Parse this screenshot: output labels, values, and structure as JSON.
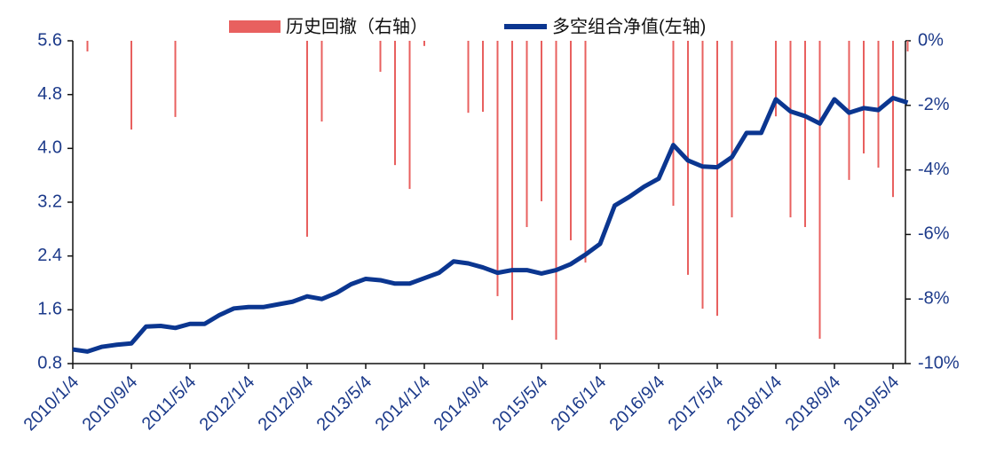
{
  "chart_data": {
    "type": "bar-line",
    "categories": [
      "2010/1/4",
      null,
      null,
      null,
      "2010/9/4",
      null,
      null,
      null,
      "2011/5/4",
      null,
      null,
      null,
      "2012/1/4",
      null,
      null,
      null,
      "2012/9/4",
      null,
      null,
      null,
      "2013/5/4",
      null,
      null,
      null,
      "2014/1/4",
      null,
      null,
      null,
      "2014/9/4",
      null,
      null,
      null,
      "2015/5/4",
      null,
      null,
      null,
      "2016/1/4",
      null,
      null,
      null,
      "2016/9/4",
      null,
      null,
      null,
      "2017/5/4",
      null,
      null,
      null,
      "2018/1/4",
      null,
      null,
      null,
      "2018/9/4",
      null,
      null,
      null,
      "2019/5/4",
      null
    ],
    "series": [
      {
        "name": "历史回撤（右轴）",
        "type": "bar",
        "axis": "y2",
        "color": "#e8605f",
        "values": [
          null,
          -0.33,
          null,
          null,
          -2.75,
          null,
          null,
          -2.36,
          null,
          null,
          null,
          null,
          null,
          null,
          null,
          null,
          -6.07,
          -2.5,
          null,
          null,
          null,
          -0.96,
          -3.85,
          -4.59,
          -0.16,
          null,
          null,
          -2.23,
          -2.2,
          -7.91,
          -8.65,
          -5.77,
          -4.97,
          -9.26,
          -6.18,
          -6.87,
          null,
          null,
          null,
          null,
          null,
          -5.11,
          -7.25,
          -8.3,
          -8.52,
          -5.47,
          null,
          null,
          -2.34,
          -5.47,
          -5.77,
          -9.23,
          null,
          -4.31,
          -3.49,
          -3.93,
          -4.84,
          -0.33
        ]
      },
      {
        "name": "多空组合净值(左轴)",
        "type": "line",
        "axis": "y",
        "color": "#0b3690",
        "values": [
          1.01,
          0.98,
          1.05,
          1.08,
          1.1,
          1.35,
          1.36,
          1.33,
          1.39,
          1.39,
          1.52,
          1.62,
          1.64,
          1.64,
          1.68,
          1.72,
          1.8,
          1.76,
          1.85,
          1.98,
          2.06,
          2.04,
          1.99,
          1.99,
          2.07,
          2.15,
          2.32,
          2.29,
          2.23,
          2.15,
          2.19,
          2.19,
          2.14,
          2.19,
          2.28,
          2.42,
          2.58,
          3.15,
          3.28,
          3.43,
          3.55,
          4.05,
          3.82,
          3.73,
          3.72,
          3.87,
          4.23,
          4.23,
          4.73,
          4.55,
          4.48,
          4.37,
          4.73,
          4.53,
          4.6,
          4.57,
          4.75,
          4.68
        ]
      }
    ],
    "ylim": [
      0.8,
      5.6
    ],
    "yticks": [
      0.8,
      1.6,
      2.4,
      3.2,
      {
        "value": 4,
        "label": "4.0"
      },
      4.8,
      5.6
    ],
    "y2lim": [
      -10,
      0
    ],
    "y2ticks": [
      {
        "value": -10,
        "label": "-10%"
      },
      {
        "value": -8,
        "label": "-8%"
      },
      {
        "value": -6,
        "label": "-6%"
      },
      {
        "value": -4,
        "label": "-4%"
      },
      {
        "value": -2,
        "label": "-2%"
      },
      {
        "value": 0,
        "label": "0%"
      }
    ],
    "legend": "top"
  }
}
